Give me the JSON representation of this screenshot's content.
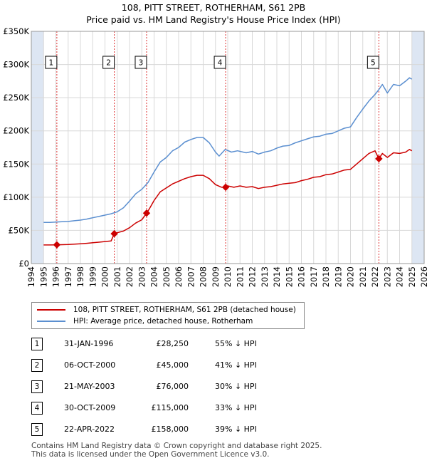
{
  "title_line1": "108, PITT STREET, ROTHERHAM, S61 2PB",
  "title_line2": "Price paid vs. HM Land Registry's House Price Index (HPI)",
  "colors": {
    "price_paid": "#cc0000",
    "hpi": "#5b8fd0",
    "shade": "#dde6f3",
    "grid": "#d8d8d8"
  },
  "legend": {
    "price_paid_label": "108, PITT STREET, ROTHERHAM, S61 2PB (detached house)",
    "hpi_label": "HPI: Average price, detached house, Rotherham"
  },
  "sales": [
    {
      "num": "1",
      "date": "31-JAN-1996",
      "price": "£28,250",
      "diff": "55% ↓ HPI"
    },
    {
      "num": "2",
      "date": "06-OCT-2000",
      "price": "£45,000",
      "diff": "41% ↓ HPI"
    },
    {
      "num": "3",
      "date": "21-MAY-2003",
      "price": "£76,000",
      "diff": "30% ↓ HPI"
    },
    {
      "num": "4",
      "date": "30-OCT-2009",
      "price": "£115,000",
      "diff": "33% ↓ HPI"
    },
    {
      "num": "5",
      "date": "22-APR-2022",
      "price": "£158,000",
      "diff": "39% ↓ HPI"
    }
  ],
  "footer": {
    "line1": "Contains HM Land Registry data © Crown copyright and database right 2025.",
    "line2": "This data is licensed under the Open Government Licence v3.0."
  },
  "chart_data": {
    "type": "line",
    "title": "108, PITT STREET, ROTHERHAM, S61 2PB — Price paid vs. HM Land Registry's House Price Index (HPI)",
    "xlabel": "",
    "ylabel": "",
    "xlim": [
      1994,
      2026
    ],
    "ylim": [
      0,
      350000
    ],
    "x_ticks": [
      1994,
      1995,
      1996,
      1997,
      1998,
      1999,
      2000,
      2001,
      2002,
      2003,
      2004,
      2005,
      2006,
      2007,
      2008,
      2009,
      2010,
      2011,
      2012,
      2013,
      2014,
      2015,
      2016,
      2017,
      2018,
      2019,
      2020,
      2021,
      2022,
      2023,
      2024,
      2025,
      2026
    ],
    "y_ticks": [
      0,
      50000,
      100000,
      150000,
      200000,
      250000,
      300000,
      350000
    ],
    "y_tick_labels": [
      "£0",
      "£50K",
      "£100K",
      "£150K",
      "£200K",
      "£250K",
      "£300K",
      "£350K"
    ],
    "shaded_ranges": [
      [
        1994,
        1995
      ],
      [
        2025,
        2026
      ]
    ],
    "series": [
      {
        "name": "HPI: Average price, detached house, Rotherham",
        "color": "#5b8fd0",
        "x": [
          1995,
          1995.5,
          1996,
          1996.5,
          1997,
          1997.5,
          1998,
          1998.5,
          1999,
          1999.5,
          2000,
          2000.5,
          2001,
          2001.5,
          2002,
          2002.5,
          2003,
          2003.5,
          2004,
          2004.5,
          2005,
          2005.5,
          2006,
          2006.5,
          2007,
          2007.5,
          2008,
          2008.5,
          2009,
          2009.3,
          2009.8,
          2010.3,
          2010.8,
          2011.5,
          2012,
          2012.5,
          2013,
          2013.5,
          2014,
          2014.5,
          2015,
          2015.5,
          2016,
          2016.5,
          2017,
          2017.5,
          2018,
          2018.5,
          2019,
          2019.5,
          2020,
          2020.5,
          2021,
          2021.5,
          2022,
          2022.3,
          2022.6,
          2023,
          2023.5,
          2024,
          2024.5,
          2024.8,
          2025
        ],
        "values": [
          62000,
          62000,
          62500,
          63000,
          63500,
          64500,
          65500,
          67000,
          69000,
          71000,
          73000,
          75000,
          78000,
          84000,
          94000,
          105000,
          112000,
          122000,
          138000,
          153000,
          160000,
          170000,
          175000,
          183000,
          187000,
          190000,
          190000,
          182000,
          168000,
          162000,
          172000,
          168000,
          170000,
          167000,
          169000,
          165000,
          168000,
          170000,
          174000,
          177000,
          178000,
          182000,
          185000,
          188000,
          191000,
          192000,
          195000,
          196000,
          200000,
          204000,
          206000,
          220000,
          233000,
          245000,
          255000,
          262000,
          270000,
          257000,
          270000,
          268000,
          275000,
          280000,
          278000
        ]
      },
      {
        "name": "108, PITT STREET, ROTHERHAM, S61 2PB (detached house)",
        "color": "#cc0000",
        "x": [
          1995,
          1995.5,
          1996.08,
          1996.5,
          1997,
          1997.5,
          1998,
          1998.5,
          1999,
          1999.5,
          2000,
          2000.5,
          2000.76,
          2001,
          2001.5,
          2002,
          2002.5,
          2003,
          2003.39,
          2003.6,
          2004,
          2004.5,
          2005,
          2005.5,
          2006,
          2006.5,
          2007,
          2007.5,
          2008,
          2008.5,
          2009,
          2009.5,
          2009.83,
          2010,
          2010.5,
          2011,
          2011.5,
          2012,
          2012.5,
          2013,
          2013.5,
          2014,
          2014.5,
          2015,
          2015.5,
          2016,
          2016.5,
          2017,
          2017.5,
          2018,
          2018.5,
          2019,
          2019.5,
          2020,
          2020.5,
          2021,
          2021.5,
          2022,
          2022.31,
          2022.6,
          2023,
          2023.5,
          2024,
          2024.5,
          2024.8,
          2025
        ],
        "values": [
          28000,
          28000,
          28250,
          28500,
          28800,
          29300,
          29800,
          30500,
          31300,
          32200,
          33200,
          34000,
          45000,
          46500,
          49000,
          54000,
          61000,
          66000,
          76000,
          82000,
          95000,
          108000,
          114000,
          120000,
          124000,
          128000,
          131000,
          133000,
          133000,
          128000,
          119000,
          115000,
          115000,
          117000,
          115000,
          117000,
          115000,
          116000,
          113000,
          115000,
          116000,
          118000,
          120000,
          121000,
          122000,
          125000,
          127000,
          130000,
          131000,
          134000,
          135000,
          138000,
          141000,
          142000,
          150000,
          158000,
          166000,
          170000,
          158000,
          166000,
          160000,
          167000,
          166000,
          168000,
          172000,
          170000
        ]
      }
    ],
    "sale_points": [
      {
        "label": "1",
        "x": 1996.08,
        "y": 28250
      },
      {
        "label": "2",
        "x": 2000.76,
        "y": 45000
      },
      {
        "label": "3",
        "x": 2003.39,
        "y": 76000
      },
      {
        "label": "4",
        "x": 2009.83,
        "y": 115000
      },
      {
        "label": "5",
        "x": 2022.31,
        "y": 158000
      }
    ]
  }
}
